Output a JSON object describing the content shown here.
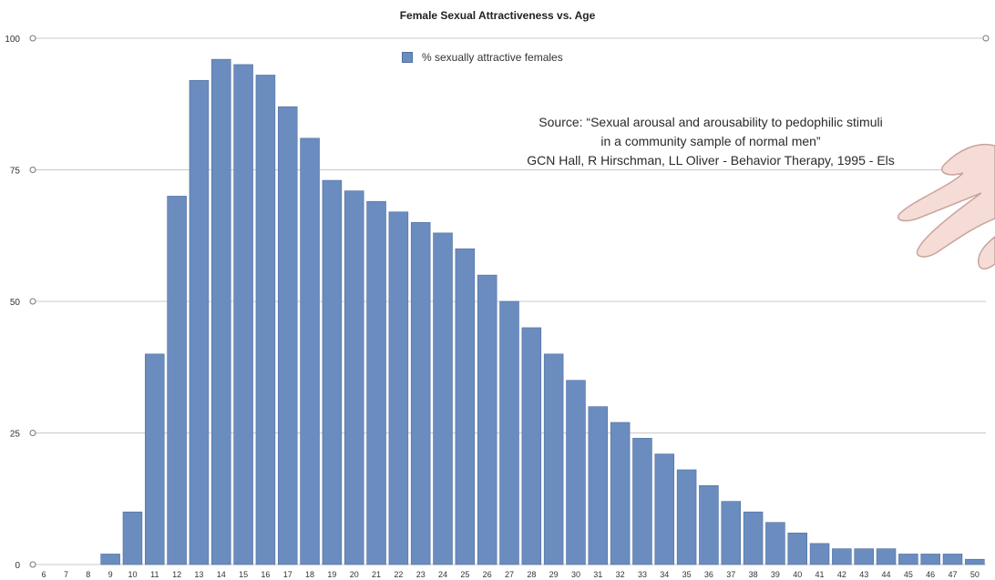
{
  "chart_data": {
    "type": "bar",
    "title": "Female Sexual Attractiveness vs. Age",
    "xlabel": "",
    "ylabel": "",
    "ylim": [
      0,
      100
    ],
    "yticks": [
      "0",
      "25",
      "50",
      "75",
      "100"
    ],
    "categories": [
      "6",
      "7",
      "8",
      "9",
      "10",
      "11",
      "12",
      "13",
      "14",
      "15",
      "16",
      "17",
      "18",
      "19",
      "20",
      "21",
      "22",
      "23",
      "24",
      "25",
      "26",
      "27",
      "28",
      "29",
      "30",
      "31",
      "32",
      "33",
      "34",
      "35",
      "36",
      "37",
      "38",
      "39",
      "40",
      "41",
      "42",
      "43",
      "44",
      "45",
      "46",
      "47",
      "50"
    ],
    "series": [
      {
        "name": "% sexually attractive females",
        "color": "#6b8cbf",
        "values": [
          0,
          0,
          0,
          2,
          10,
          40,
          70,
          92,
          96,
          95,
          93,
          87,
          81,
          73,
          71,
          69,
          67,
          65,
          63,
          60,
          55,
          50,
          45,
          40,
          35,
          30,
          27,
          24,
          21,
          18,
          15,
          12,
          10,
          8,
          6,
          4,
          3,
          3,
          3,
          2,
          2,
          2,
          1
        ]
      }
    ],
    "legend_position": "top-center",
    "grid": true,
    "annotation": {
      "lines": [
        "Source: “Sexual arousal and arousability to pedophilic stimuli",
        "in a community sample of normal men”",
        "GCN Hall, R Hirschman, LL Oliver - Behavior Therapy, 1995 - Els"
      ]
    }
  },
  "colors": {
    "bar": "#6b8cbf",
    "bar_edge": "#4f6f9f",
    "grid": "#c8c8c8"
  },
  "icons": {
    "decoration": "hand-illustration"
  }
}
